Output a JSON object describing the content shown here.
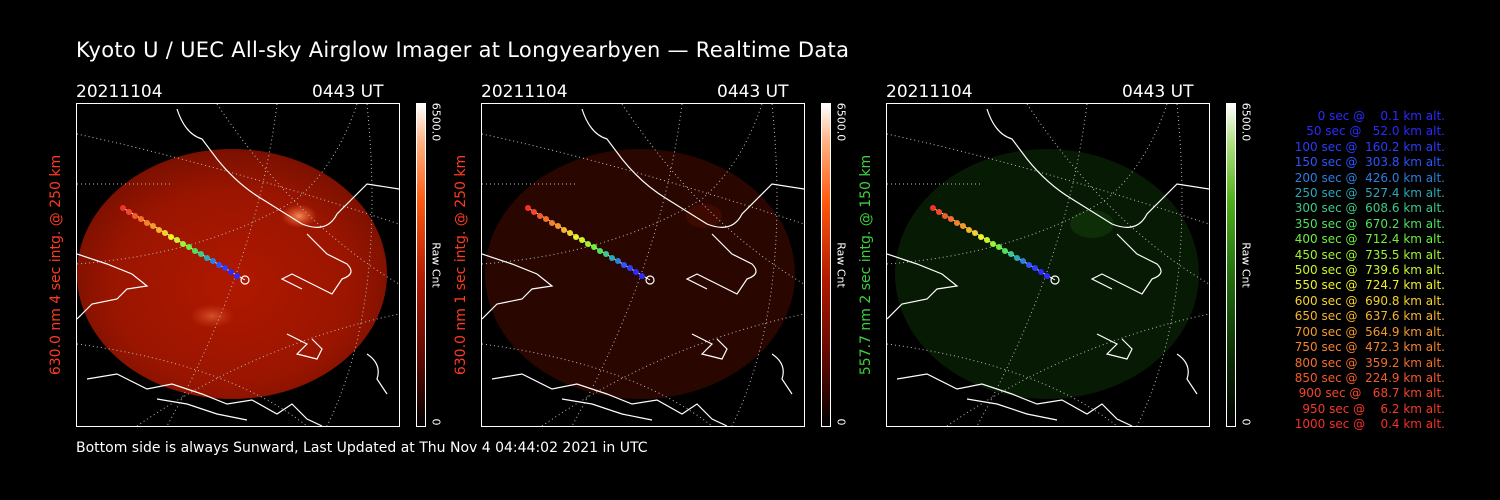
{
  "title": "Kyoto U / UEC All-sky Airglow Imager at Longyearbyen — Realtime Data",
  "footer": "Bottom side is always Sunward, Last Updated at Thu Nov  4 04:44:02 2021 in UTC",
  "panels": [
    {
      "date": "20211104",
      "time": "0443 UT",
      "ylabel": "630.0 nm 4 sec intg. @ 250 km",
      "label_color": "#ff3b1f",
      "cb_max": "6500.0",
      "cb_mid": "Raw Cnt",
      "cb_min": "0",
      "image": "red airglow all-sky image, bright",
      "accent": "#ff2a00"
    },
    {
      "date": "20211104",
      "time": "0443 UT",
      "ylabel": "630.0 nm 1 sec intg. @ 250 km",
      "label_color": "#ff3b1f",
      "cb_max": "6500.0",
      "cb_mid": "Raw Cnt",
      "cb_min": "0",
      "image": "red airglow all-sky image, dim",
      "accent": "#ff2a00"
    },
    {
      "date": "20211104",
      "time": "0443 UT",
      "ylabel": "557.7 nm 2 sec intg. @ 150 km",
      "label_color": "#3cd13c",
      "cb_max": "6500.0",
      "cb_mid": "Raw Cnt",
      "cb_min": "0",
      "image": "green airglow all-sky image, dim",
      "accent": "#33ff33"
    }
  ],
  "legend": [
    {
      "text": "   0 sec @    0.1 km alt.",
      "color": "#2b2bff"
    },
    {
      "text": "  50 sec @   52.0 km alt.",
      "color": "#2b2bff"
    },
    {
      "text": " 100 sec @  160.2 km alt.",
      "color": "#2b3cff"
    },
    {
      "text": " 150 sec @  303.8 km alt.",
      "color": "#2b55ff"
    },
    {
      "text": " 200 sec @  426.0 km alt.",
      "color": "#2b7fe0"
    },
    {
      "text": " 250 sec @  527.4 km alt.",
      "color": "#2aa8b8"
    },
    {
      "text": " 300 sec @  608.6 km alt.",
      "color": "#3cc98a"
    },
    {
      "text": " 350 sec @  670.2 km alt.",
      "color": "#4fe05c"
    },
    {
      "text": " 400 sec @  712.4 km alt.",
      "color": "#6ef03c"
    },
    {
      "text": " 450 sec @  735.5 km alt.",
      "color": "#9ef52e"
    },
    {
      "text": " 500 sec @  739.6 km alt.",
      "color": "#c8f52a"
    },
    {
      "text": " 550 sec @  724.7 km alt.",
      "color": "#eef02a"
    },
    {
      "text": " 600 sec @  690.8 km alt.",
      "color": "#f5d22a"
    },
    {
      "text": " 650 sec @  637.6 km alt.",
      "color": "#f5b42a"
    },
    {
      "text": " 700 sec @  564.9 km alt.",
      "color": "#f59a2a"
    },
    {
      "text": " 750 sec @  472.3 km alt.",
      "color": "#f5822a"
    },
    {
      "text": " 800 sec @  359.2 km alt.",
      "color": "#f56e2a"
    },
    {
      "text": " 850 sec @  224.9 km alt.",
      "color": "#f55a2a"
    },
    {
      "text": " 900 sec @   68.7 km alt.",
      "color": "#f5462a"
    },
    {
      "text": " 950 sec @    6.2 km alt.",
      "color": "#f53a2a"
    },
    {
      "text": "1000 sec @    0.4 km alt.",
      "color": "#f52f2a"
    }
  ]
}
